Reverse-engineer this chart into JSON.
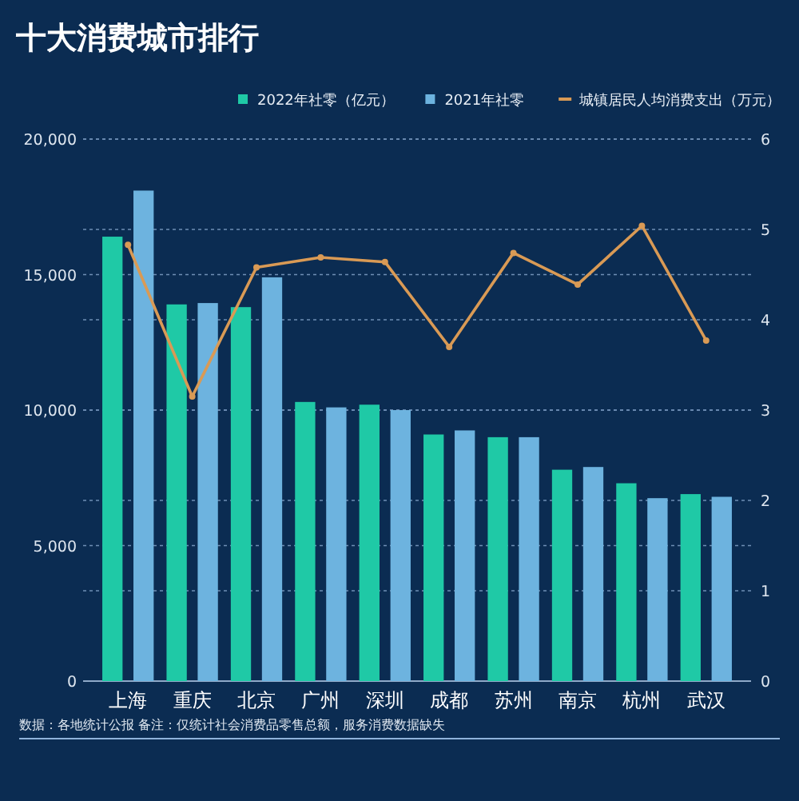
{
  "chart_data": {
    "type": "bar",
    "title": "十大消费城市排行",
    "categories": [
      "上海",
      "重庆",
      "北京",
      "广州",
      "深圳",
      "成都",
      "苏州",
      "南京",
      "杭州",
      "武汉"
    ],
    "series": [
      {
        "name": "2022年社零（亿元）",
        "color": "#1fc9a6",
        "values": [
          16400,
          13900,
          13800,
          10300,
          10200,
          9100,
          9000,
          7800,
          7300,
          6900
        ]
      },
      {
        "name": "2021年社零",
        "color": "#6db3df",
        "values": [
          18100,
          13950,
          14900,
          10100,
          10000,
          9250,
          9000,
          7900,
          6750,
          6800
        ]
      },
      {
        "name": "城镇居民人均消费支出（万元）",
        "type": "line",
        "axis": "y2",
        "color": "#d99a55",
        "marker": "circle",
        "values": [
          4.83,
          3.15,
          4.58,
          4.69,
          4.64,
          3.7,
          4.74,
          4.39,
          5.04,
          3.77
        ]
      }
    ],
    "ylim": [
      0,
      20000
    ],
    "yticks": [
      {
        "value": 0,
        "label": "0"
      },
      {
        "value": 5000,
        "label": "5,000"
      },
      {
        "value": 10000,
        "label": "10,000"
      },
      {
        "value": 15000,
        "label": "15,000"
      },
      {
        "value": 20000,
        "label": "20,000"
      }
    ],
    "y2lim": [
      0,
      6
    ],
    "y2ticks": [
      0,
      1,
      2,
      3,
      4,
      5,
      6
    ],
    "grid": true,
    "legend": "top right",
    "annotations": [
      "数据：各地统计公报  备注：仅统计社会消费品零售总额，服务消费数据缺失"
    ]
  }
}
